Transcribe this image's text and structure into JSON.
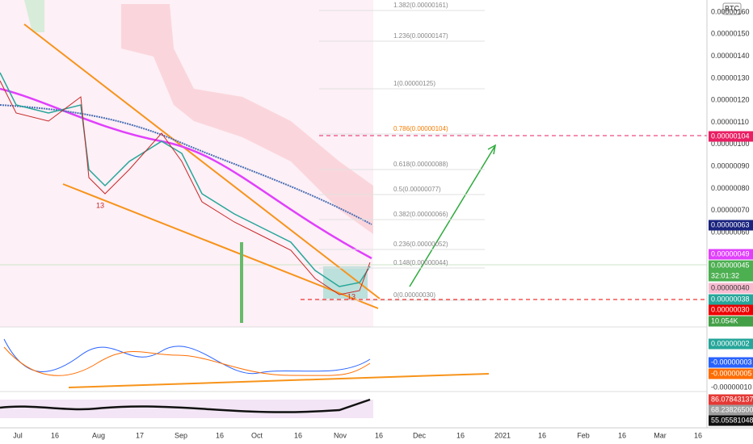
{
  "symbol_badge": "BTC",
  "price_axis": [
    "0.00000160",
    "0.00000150",
    "0.00000140",
    "0.00000130",
    "0.00000120",
    "0.00000110",
    "0.00000100",
    "0.00000090",
    "0.00000080",
    "0.00000070",
    "0.00000060"
  ],
  "fib_levels": [
    "1.382(0.00000161)",
    "1.236(0.00000147)",
    "1(0.00000125)",
    "0.786(0.00000104)",
    "0.618(0.00000088)",
    "0.5(0.00000077)",
    "0.382(0.00000066)",
    "0.236(0.00000052)",
    "0.148(0.00000044)",
    "0(0.00000030)"
  ],
  "price_badges": [
    "0.00000104",
    "0.00000063",
    "0.00000049",
    "0.00000045",
    "32:01:32",
    "0.00000040",
    "0.00000038",
    "0.00000030",
    "10.054K"
  ],
  "macd_badges": [
    "0.00000002",
    "-0.00000003",
    "-0.00000005",
    "-0.00000010"
  ],
  "rsi_badges": [
    "86.07843137",
    "68.23826500",
    "55.05581048"
  ],
  "chart_marks": [
    "13",
    "13"
  ],
  "time_axis": [
    "Jul",
    "16",
    "Aug",
    "17",
    "Sep",
    "16",
    "Oct",
    "16",
    "Nov",
    "16",
    "Dec",
    "16",
    "2021",
    "16",
    "Feb",
    "16",
    "Mar",
    "16"
  ]
}
